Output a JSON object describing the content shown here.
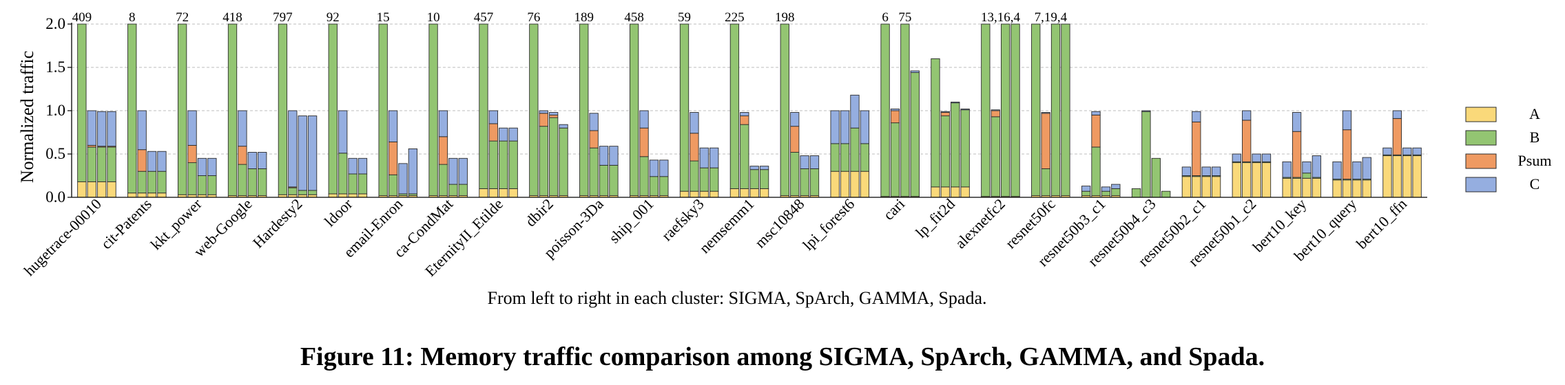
{
  "figure_caption": "Figure 11: Memory traffic comparison among SIGMA, SpArch, GAMMA, and Spada.",
  "chart_data": {
    "type": "bar",
    "stacking": "stacked",
    "ylabel": "Normalized traffic",
    "xlabel": "From left to right in each cluster: SIGMA, SpArch, GAMMA, Spada.",
    "ylim": [
      0,
      2.0
    ],
    "yticks": [
      "0.0",
      "0.5",
      "1.0",
      "1.5",
      "2.0"
    ],
    "grid": "horizontal-dashed",
    "legend_position": "right",
    "components": [
      "A",
      "B",
      "Psum",
      "C"
    ],
    "colors": {
      "A": "#FAD97A",
      "B": "#93C572",
      "Psum": "#EF9A62",
      "C": "#95AEE0"
    },
    "clusters": [
      {
        "name": "hugetrace-00010",
        "top_labels": [
          "409"
        ],
        "bars": [
          [
            0.18,
            2.0,
            0,
            0
          ],
          [
            0.18,
            0.4,
            0.02,
            0.4
          ],
          [
            0.18,
            0.4,
            0.01,
            0.4
          ],
          [
            0.18,
            0.4,
            0.01,
            0.4
          ]
        ]
      },
      {
        "name": "cit-Patents",
        "top_labels": [
          "8"
        ],
        "bars": [
          [
            0.05,
            2.0,
            0,
            0
          ],
          [
            0.05,
            0.25,
            0.25,
            0.45
          ],
          [
            0.05,
            0.25,
            0,
            0.23
          ],
          [
            0.05,
            0.25,
            0,
            0.23
          ]
        ]
      },
      {
        "name": "kkt_power",
        "top_labels": [
          "72"
        ],
        "bars": [
          [
            0.03,
            2.0,
            0,
            0
          ],
          [
            0.03,
            0.37,
            0.2,
            0.4
          ],
          [
            0.03,
            0.22,
            0,
            0.2
          ],
          [
            0.03,
            0.22,
            0,
            0.2
          ]
        ]
      },
      {
        "name": "web-Google",
        "top_labels": [
          "418"
        ],
        "bars": [
          [
            0.02,
            2.0,
            0,
            0
          ],
          [
            0.02,
            0.36,
            0.21,
            0.41
          ],
          [
            0.02,
            0.31,
            0,
            0.19
          ],
          [
            0.02,
            0.31,
            0,
            0.19
          ]
        ]
      },
      {
        "name": "Hardesty2",
        "top_labels": [
          "797"
        ],
        "bars": [
          [
            0.03,
            2.0,
            0,
            0
          ],
          [
            0.03,
            0.08,
            0.01,
            0.88
          ],
          [
            0.03,
            0.05,
            0,
            0.86
          ],
          [
            0.03,
            0.05,
            0,
            0.86
          ]
        ]
      },
      {
        "name": "ldoor",
        "top_labels": [
          "92"
        ],
        "bars": [
          [
            0.04,
            2.0,
            0,
            0
          ],
          [
            0.04,
            0.47,
            0,
            0.49
          ],
          [
            0.04,
            0.23,
            0,
            0.18
          ],
          [
            0.04,
            0.23,
            0,
            0.18
          ]
        ]
      },
      {
        "name": "email-Enron",
        "top_labels": [
          "15"
        ],
        "bars": [
          [
            0.02,
            2.0,
            0,
            0
          ],
          [
            0.02,
            0.24,
            0.38,
            0.36
          ],
          [
            0.02,
            0.02,
            0,
            0.35
          ],
          [
            0.02,
            0.02,
            0,
            0.52
          ]
        ]
      },
      {
        "name": "ca-CondMat",
        "top_labels": [
          "10"
        ],
        "bars": [
          [
            0.02,
            2.0,
            0,
            0
          ],
          [
            0.02,
            0.36,
            0.32,
            0.3
          ],
          [
            0.02,
            0.13,
            0,
            0.3
          ],
          [
            0.02,
            0.13,
            0,
            0.3
          ]
        ]
      },
      {
        "name": "EternityII_Etilde",
        "top_labels": [
          "457"
        ],
        "bars": [
          [
            0.1,
            2.0,
            0,
            0
          ],
          [
            0.1,
            0.55,
            0.2,
            0.15
          ],
          [
            0.1,
            0.55,
            0,
            0.15
          ],
          [
            0.1,
            0.55,
            0,
            0.15
          ]
        ]
      },
      {
        "name": "dbir2",
        "top_labels": [
          "76"
        ],
        "bars": [
          [
            0.02,
            2.0,
            0,
            0
          ],
          [
            0.02,
            0.8,
            0.15,
            0.03
          ],
          [
            0.02,
            0.9,
            0.03,
            0.03
          ],
          [
            0.02,
            0.78,
            0,
            0.04
          ]
        ]
      },
      {
        "name": "poisson-3Da",
        "top_labels": [
          "189"
        ],
        "bars": [
          [
            0.02,
            2.0,
            0,
            0
          ],
          [
            0.02,
            0.55,
            0.2,
            0.2
          ],
          [
            0.02,
            0.35,
            0,
            0.22
          ],
          [
            0.02,
            0.35,
            0,
            0.22
          ]
        ]
      },
      {
        "name": "ship_001",
        "top_labels": [
          "458"
        ],
        "bars": [
          [
            0.02,
            2.0,
            0,
            0
          ],
          [
            0.02,
            0.45,
            0.33,
            0.2
          ],
          [
            0.02,
            0.22,
            0,
            0.19
          ],
          [
            0.02,
            0.22,
            0,
            0.19
          ]
        ]
      },
      {
        "name": "raefsky3",
        "top_labels": [
          "59"
        ],
        "bars": [
          [
            0.07,
            2.0,
            0,
            0
          ],
          [
            0.07,
            0.35,
            0.32,
            0.24
          ],
          [
            0.07,
            0.27,
            0,
            0.23
          ],
          [
            0.07,
            0.27,
            0,
            0.23
          ]
        ]
      },
      {
        "name": "nemsemm1",
        "top_labels": [
          "225"
        ],
        "bars": [
          [
            0.1,
            2.0,
            0,
            0
          ],
          [
            0.1,
            0.74,
            0.1,
            0.04
          ],
          [
            0.1,
            0.22,
            0,
            0.04
          ],
          [
            0.1,
            0.22,
            0,
            0.04
          ]
        ]
      },
      {
        "name": "msc10848",
        "top_labels": [
          "198"
        ],
        "bars": [
          [
            0.02,
            2.0,
            0,
            0
          ],
          [
            0.02,
            0.5,
            0.3,
            0.16
          ],
          [
            0.02,
            0.31,
            0,
            0.15
          ],
          [
            0.02,
            0.31,
            0,
            0.15
          ]
        ]
      },
      {
        "name": "lpi_forest6",
        "top_labels": [],
        "bars": [
          [
            0.3,
            0.32,
            0,
            0.38
          ],
          [
            0.3,
            0.32,
            0,
            0.38
          ],
          [
            0.3,
            0.5,
            0,
            0.38
          ],
          [
            0.3,
            0.32,
            0,
            0.38
          ]
        ]
      },
      {
        "name": "cari",
        "top_labels": [
          "6",
          "75"
        ],
        "bars": [
          [
            0.01,
            2.0,
            0,
            0
          ],
          [
            0.01,
            0.85,
            0.14,
            0.02
          ],
          [
            0.01,
            2.0,
            0,
            0
          ],
          [
            0.01,
            1.43,
            0,
            0.02
          ]
        ]
      },
      {
        "name": "lp_fit2d",
        "top_labels": [],
        "bars": [
          [
            0.12,
            1.48,
            0,
            0
          ],
          [
            0.12,
            0.82,
            0.04,
            0.01
          ],
          [
            0.12,
            0.97,
            0,
            0.01
          ],
          [
            0.12,
            0.89,
            0,
            0.01
          ]
        ]
      },
      {
        "name": "alexnetfc2",
        "top_labels": [
          "13,16,4"
        ],
        "bars": [
          [
            0.01,
            2.0,
            0,
            0
          ],
          [
            0.01,
            0.92,
            0.07,
            0.01
          ],
          [
            0.01,
            2.0,
            0,
            0
          ],
          [
            0.01,
            2.0,
            0,
            0
          ]
        ]
      },
      {
        "name": "resnet50fc",
        "top_labels": [
          "7,19,4"
        ],
        "bars": [
          [
            0.02,
            2.0,
            0,
            0
          ],
          [
            0.02,
            0.31,
            0.64,
            0.01
          ],
          [
            0.02,
            2.0,
            0,
            0
          ],
          [
            0.02,
            2.0,
            0,
            0
          ]
        ]
      },
      {
        "name": "resnet50b3_c1",
        "top_labels": [],
        "bars": [
          [
            0.02,
            0.05,
            0,
            0.06
          ],
          [
            0.02,
            0.56,
            0.37,
            0.04
          ],
          [
            0.02,
            0.05,
            0,
            0.05
          ],
          [
            0.02,
            0.08,
            0,
            0.05
          ]
        ]
      },
      {
        "name": "resnet50b4_c3",
        "top_labels": [],
        "bars": [
          [
            0,
            0.1,
            0,
            0
          ],
          [
            0,
            0.99,
            0,
            0.01
          ],
          [
            0,
            0.45,
            0,
            0
          ],
          [
            0,
            0.07,
            0,
            0
          ]
        ]
      },
      {
        "name": "resnet50b2_c1",
        "top_labels": [],
        "bars": [
          [
            0.24,
            0.01,
            0,
            0.1
          ],
          [
            0.24,
            0.01,
            0.62,
            0.12
          ],
          [
            0.24,
            0.01,
            0,
            0.1
          ],
          [
            0.24,
            0.01,
            0,
            0.1
          ]
        ]
      },
      {
        "name": "resnet50b1_c2",
        "top_labels": [],
        "bars": [
          [
            0.4,
            0.01,
            0,
            0.09
          ],
          [
            0.4,
            0.01,
            0.48,
            0.11
          ],
          [
            0.4,
            0.01,
            0,
            0.09
          ],
          [
            0.4,
            0.01,
            0,
            0.09
          ]
        ]
      },
      {
        "name": "bert10_key",
        "top_labels": [],
        "bars": [
          [
            0.22,
            0.01,
            0,
            0.18
          ],
          [
            0.22,
            0.01,
            0.53,
            0.22
          ],
          [
            0.22,
            0.06,
            0,
            0.13
          ],
          [
            0.22,
            0.01,
            0,
            0.25
          ]
        ]
      },
      {
        "name": "bert10_query",
        "top_labels": [],
        "bars": [
          [
            0.2,
            0.01,
            0,
            0.2
          ],
          [
            0.2,
            0.01,
            0.57,
            0.22
          ],
          [
            0.2,
            0.01,
            0,
            0.2
          ],
          [
            0.2,
            0.01,
            0,
            0.25
          ]
        ]
      },
      {
        "name": "bert10_ffn",
        "top_labels": [],
        "bars": [
          [
            0.48,
            0.01,
            0,
            0.08
          ],
          [
            0.48,
            0.01,
            0.42,
            0.09
          ],
          [
            0.48,
            0.01,
            0,
            0.08
          ],
          [
            0.48,
            0.01,
            0,
            0.08
          ]
        ]
      }
    ]
  }
}
